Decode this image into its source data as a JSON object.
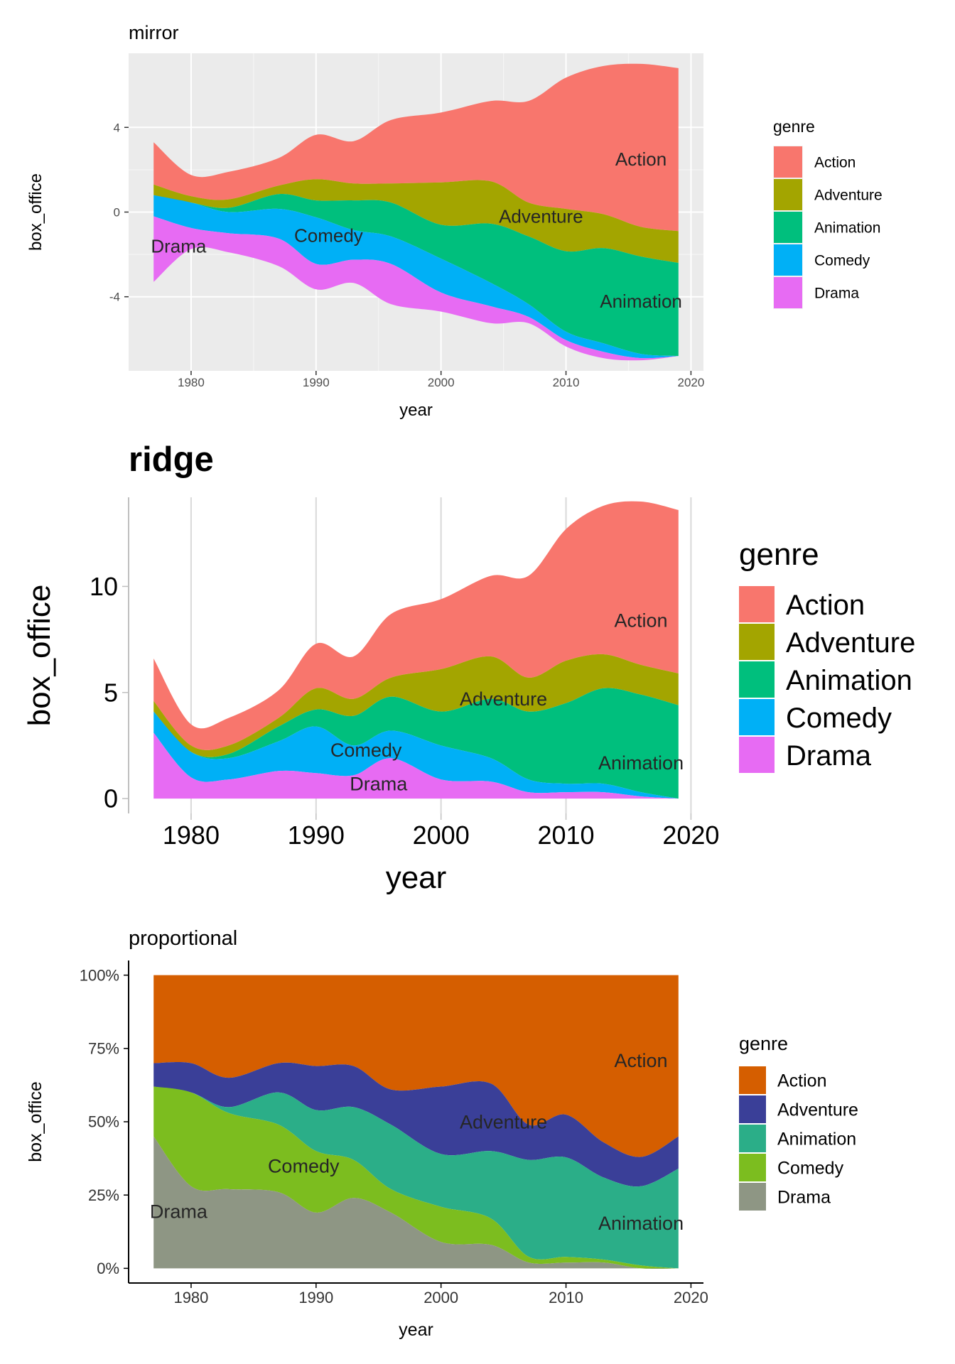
{
  "chart_data": [
    {
      "type": "area",
      "variant": "streamgraph-mirror",
      "title": "mirror",
      "xlabel": "year",
      "ylabel": "box_office",
      "xlim": [
        1975,
        2021
      ],
      "ylim": [
        -7.5,
        7.5
      ],
      "xticks": [
        1980,
        1990,
        2000,
        2010,
        2020
      ],
      "yticks": [
        -4,
        0,
        4
      ],
      "ytick_labels": [
        "-4",
        "0",
        "4"
      ],
      "grid": true,
      "legend_title": "genre",
      "legend_position": "right",
      "x": [
        1977,
        1980,
        1983,
        1987,
        1990,
        1993,
        1996,
        2000,
        2004,
        2007,
        2010,
        2013,
        2016,
        2019
      ],
      "series": [
        {
          "name": "Action",
          "color": "#F8766D",
          "label": "Action",
          "values": [
            2.0,
            1.0,
            1.3,
            1.3,
            2.1,
            2.0,
            3.0,
            3.3,
            3.8,
            4.8,
            6.2,
            7.0,
            7.7,
            7.7
          ]
        },
        {
          "name": "Adventure",
          "color": "#A3A500",
          "label": "Adventure",
          "values": [
            0.5,
            0.3,
            0.4,
            0.4,
            1.0,
            0.8,
            0.9,
            2.0,
            2.0,
            1.6,
            2.0,
            1.6,
            1.4,
            1.5
          ]
        },
        {
          "name": "Animation",
          "color": "#00BF7D",
          "label": "Animation",
          "values": [
            0.0,
            0.0,
            0.2,
            0.7,
            0.8,
            1.4,
            1.6,
            1.6,
            2.8,
            3.2,
            3.8,
            4.5,
            4.6,
            4.4
          ]
        },
        {
          "name": "Comedy",
          "color": "#00B0F6",
          "label": "Comedy",
          "values": [
            1.0,
            1.2,
            1.0,
            1.4,
            2.2,
            1.4,
            1.3,
            1.6,
            1.1,
            0.6,
            0.4,
            0.4,
            0.2,
            0.0
          ]
        },
        {
          "name": "Drama",
          "color": "#E76BF3",
          "label": "Drama",
          "values": [
            3.1,
            1.0,
            0.9,
            1.3,
            1.2,
            1.1,
            1.9,
            0.9,
            0.8,
            0.3,
            0.3,
            0.3,
            0.1,
            0.0
          ]
        }
      ]
    },
    {
      "type": "area",
      "variant": "streamgraph-ridge",
      "title": "ridge",
      "xlabel": "year",
      "ylabel": "box_office",
      "xlim": [
        1975,
        2021
      ],
      "ylim": [
        -0.7,
        14.2
      ],
      "xticks": [
        1980,
        1990,
        2000,
        2010,
        2020
      ],
      "yticks": [
        0,
        5,
        10
      ],
      "ytick_labels": [
        "0",
        "5",
        "10"
      ],
      "grid": true,
      "legend_title": "genre",
      "legend_position": "right",
      "x": [
        1977,
        1980,
        1983,
        1987,
        1990,
        1993,
        1996,
        2000,
        2004,
        2007,
        2010,
        2013,
        2016,
        2019
      ],
      "series": [
        {
          "name": "Action",
          "color": "#F8766D",
          "label": "Action",
          "values": [
            2.0,
            1.0,
            1.3,
            1.3,
            2.1,
            2.0,
            3.0,
            3.3,
            3.8,
            4.8,
            6.2,
            7.0,
            7.7,
            7.7
          ]
        },
        {
          "name": "Adventure",
          "color": "#A3A500",
          "label": "Adventure",
          "values": [
            0.5,
            0.3,
            0.4,
            0.4,
            1.0,
            0.8,
            0.9,
            2.0,
            2.0,
            1.6,
            2.0,
            1.6,
            1.4,
            1.5
          ]
        },
        {
          "name": "Animation",
          "color": "#00BF7D",
          "label": "Animation",
          "values": [
            0.0,
            0.0,
            0.2,
            0.7,
            0.8,
            1.4,
            1.6,
            1.6,
            2.8,
            3.2,
            3.8,
            4.5,
            4.6,
            4.4
          ]
        },
        {
          "name": "Comedy",
          "color": "#00B0F6",
          "label": "Comedy",
          "values": [
            1.0,
            1.2,
            1.0,
            1.4,
            2.2,
            1.4,
            1.3,
            1.6,
            1.1,
            0.6,
            0.4,
            0.4,
            0.2,
            0.0
          ]
        },
        {
          "name": "Drama",
          "color": "#E76BF3",
          "label": "Drama",
          "values": [
            3.1,
            1.0,
            0.9,
            1.3,
            1.2,
            1.1,
            1.9,
            0.9,
            0.8,
            0.3,
            0.3,
            0.3,
            0.1,
            0.0
          ]
        }
      ]
    },
    {
      "type": "area",
      "variant": "streamgraph-proportional",
      "title": "proportional",
      "xlabel": "year",
      "ylabel": "box_office",
      "xlim": [
        1975,
        2021
      ],
      "ylim": [
        -0.05,
        1.05
      ],
      "xticks": [
        1980,
        1990,
        2000,
        2010,
        2020
      ],
      "yticks": [
        0,
        0.25,
        0.5,
        0.75,
        1
      ],
      "ytick_labels": [
        "0%",
        "25%",
        "50%",
        "75%",
        "100%"
      ],
      "grid": false,
      "legend_title": "genre",
      "legend_position": "right",
      "x": [
        1977,
        1980,
        1983,
        1987,
        1990,
        1993,
        1996,
        2000,
        2004,
        2007,
        2010,
        2013,
        2016,
        2019
      ],
      "series": [
        {
          "name": "Action",
          "color": "#D55E00",
          "label": "Action",
          "values": [
            0.3,
            0.3,
            0.35,
            0.3,
            0.31,
            0.31,
            0.39,
            0.38,
            0.37,
            0.51,
            0.49,
            0.57,
            0.62,
            0.55
          ]
        },
        {
          "name": "Adventure",
          "color": "#3A3F98",
          "label": "Adventure",
          "values": [
            0.08,
            0.1,
            0.1,
            0.1,
            0.15,
            0.14,
            0.12,
            0.23,
            0.23,
            0.12,
            0.15,
            0.12,
            0.1,
            0.11
          ]
        },
        {
          "name": "Animation",
          "color": "#2BAE88",
          "label": "Animation",
          "values": [
            0.0,
            0.0,
            0.02,
            0.11,
            0.14,
            0.18,
            0.22,
            0.18,
            0.23,
            0.33,
            0.35,
            0.28,
            0.27,
            0.34
          ]
        },
        {
          "name": "Comedy",
          "color": "#7CBD1F",
          "label": "Comedy",
          "values": [
            0.17,
            0.32,
            0.26,
            0.23,
            0.21,
            0.13,
            0.08,
            0.12,
            0.09,
            0.02,
            0.02,
            0.01,
            0.01,
            0.0
          ]
        },
        {
          "name": "Drama",
          "color": "#8E9684",
          "label": "Drama",
          "values": [
            0.45,
            0.28,
            0.27,
            0.26,
            0.19,
            0.24,
            0.19,
            0.09,
            0.08,
            0.02,
            0.02,
            0.02,
            0.0,
            0.0
          ]
        }
      ]
    }
  ]
}
